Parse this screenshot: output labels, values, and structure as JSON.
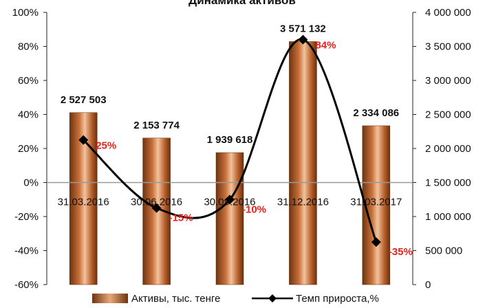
{
  "chart_data": {
    "type": "bar",
    "title": "Динамика активов",
    "categories": [
      "31.03.2016",
      "30.06.2016",
      "30.09.2016",
      "31.12.2016",
      "31.03.2017"
    ],
    "series": [
      {
        "name": "Активы, тыс. тенге",
        "type": "bar",
        "axis": "right",
        "values": [
          2527503,
          2153774,
          1939618,
          3571132,
          2334086
        ],
        "labels": [
          "2 527 503",
          "2 153 774",
          "1 939 618",
          "3 571 132",
          "2 334 086"
        ]
      },
      {
        "name": "Темп прироста,%",
        "type": "line",
        "axis": "left",
        "values": [
          25,
          -15,
          -10,
          84,
          -35
        ],
        "labels": [
          "25%",
          "-15%",
          "-10%",
          "84%",
          "-35%"
        ]
      }
    ],
    "y_left": {
      "min": -60,
      "max": 100,
      "step": 20,
      "ticks": [
        "-60%",
        "-40%",
        "-20%",
        "0%",
        "20%",
        "40%",
        "60%",
        "80%",
        "100%"
      ]
    },
    "y_right": {
      "min": 0,
      "max": 4000000,
      "step": 500000,
      "ticks": [
        "0",
        "500 000",
        "1 000 000",
        "1 500 000",
        "2 000 000",
        "2 500 000",
        "3 000 000",
        "3 500 000",
        "4 000 000"
      ]
    },
    "legend_position": "bottom",
    "grid": false,
    "colors": {
      "bar_dark": "#6e3410",
      "bar_mid": "#c8703a",
      "bar_light": "#f2c39c",
      "line": "#000000",
      "label_pct": "#e8201c"
    }
  }
}
